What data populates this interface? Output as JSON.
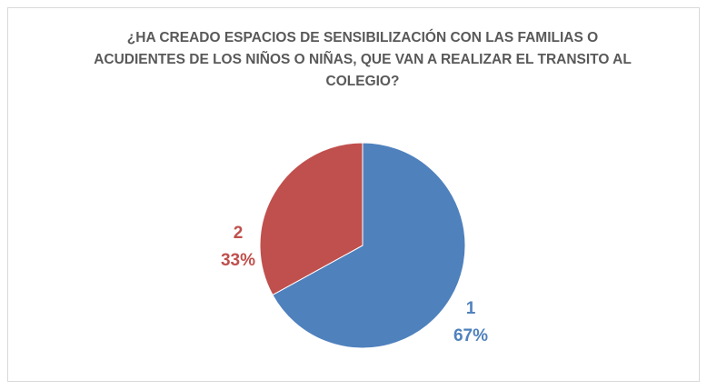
{
  "chart_data": {
    "type": "pie",
    "title": "¿HA CREADO ESPACIOS DE SENSIBILIZACIÓN CON LAS FAMILIAS O ACUDIENTES DE LOS NIÑOS O NIÑAS, QUE VAN A REALIZAR EL TRANSITO AL COLEGIO?",
    "categories": [
      "1",
      "2"
    ],
    "values": [
      67,
      33
    ],
    "value_labels": [
      "67%",
      "33%"
    ],
    "colors": [
      "#4f81bd",
      "#c0504d"
    ]
  }
}
